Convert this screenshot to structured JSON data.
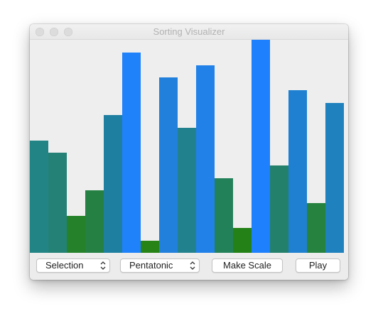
{
  "window": {
    "title": "Sorting Visualizer"
  },
  "bars": {
    "count": 17,
    "max_value": 300,
    "values": [
      158,
      141,
      52,
      88,
      194,
      282,
      17,
      247,
      176,
      264,
      105,
      35,
      300,
      123,
      229,
      70,
      211
    ],
    "colors": [
      "#228485",
      "#238176",
      "#25822a",
      "#248043",
      "#1f7fa0",
      "#1f82fa",
      "#288316",
      "#2180dc",
      "#21828e",
      "#2181e9",
      "#238159",
      "#238117",
      "#1e80fc",
      "#23816b",
      "#1f80d1",
      "#25823f",
      "#1f81bd"
    ]
  },
  "controls": {
    "algorithm_select": {
      "value": "Selection",
      "icon": "updown-chevron-icon"
    },
    "scale_select": {
      "value": "Pentatonic",
      "icon": "updown-chevron-icon"
    },
    "make_scale_label": "Make Scale",
    "play_label": "Play"
  }
}
